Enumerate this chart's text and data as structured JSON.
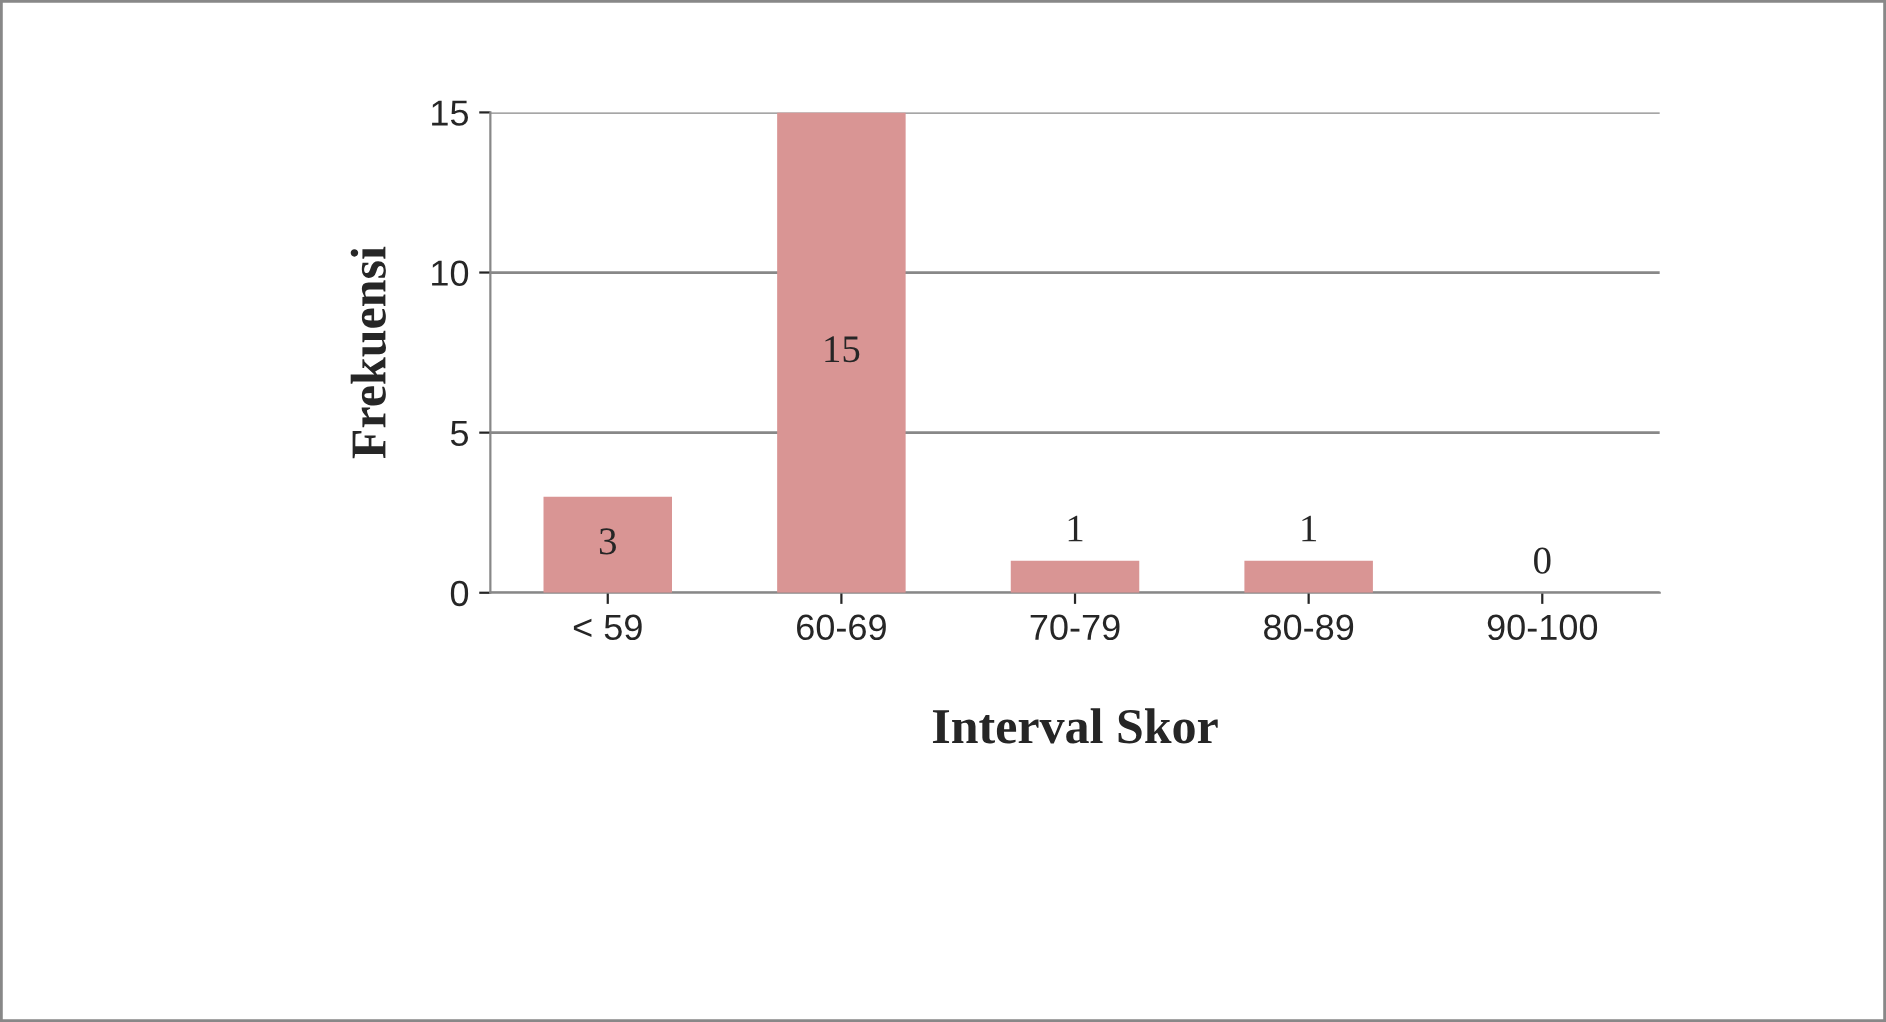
{
  "chart_data": {
    "type": "bar",
    "xlabel": "Interval Skor",
    "ylabel": "Frekuensi",
    "categories": [
      "< 59",
      "60-69",
      "70-79",
      "80-89",
      "90-100"
    ],
    "values": [
      3,
      15,
      1,
      1,
      0
    ],
    "color": "#d99594",
    "ylim": [
      0,
      15
    ],
    "yticks": [
      0,
      5,
      10,
      15
    ],
    "grid": "y",
    "data_labels": true
  }
}
